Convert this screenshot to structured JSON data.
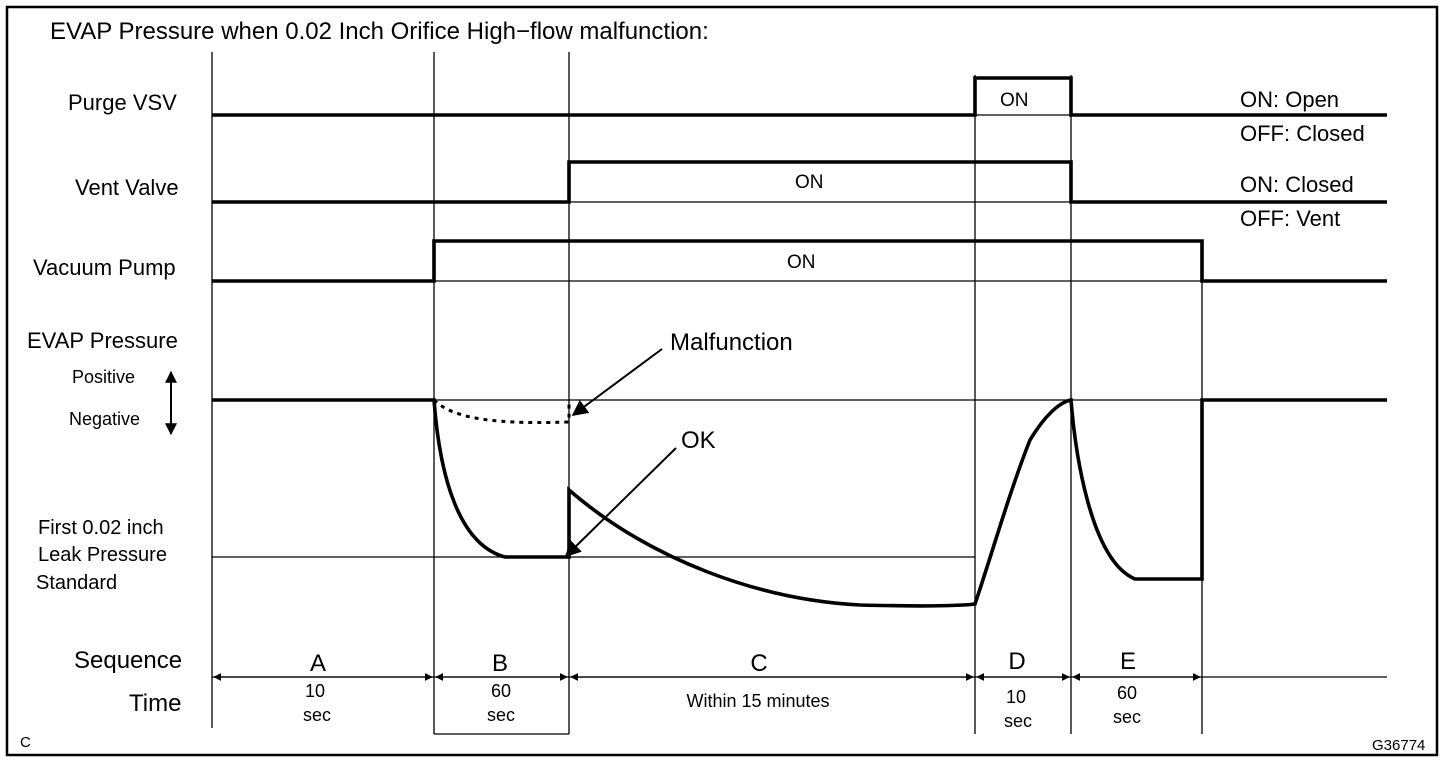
{
  "title": "EVAP Pressure when 0.02 Inch Orifice High−flow malfunction:",
  "signals": {
    "purge_vsv": {
      "label": "Purge VSV",
      "pulse_label": "ON",
      "legend_on": "ON: Open",
      "legend_off": "OFF: Closed"
    },
    "vent_valve": {
      "label": "Vent Valve",
      "pulse_label": "ON",
      "legend_on": "ON: Closed",
      "legend_off": "OFF: Vent"
    },
    "vacuum_pump": {
      "label": "Vacuum Pump",
      "pulse_label": "ON"
    }
  },
  "pressure": {
    "label": "EVAP Pressure",
    "positive": "Positive",
    "negative": "Negative",
    "malfunction": "Malfunction",
    "ok": "OK",
    "standard_line1": "First 0.02 inch",
    "standard_line2": "Leak Pressure",
    "standard_line3": "Standard"
  },
  "sequence_label": "Sequence",
  "time_label": "Time",
  "phases": [
    {
      "id": "A",
      "time1": "10",
      "time2": "sec"
    },
    {
      "id": "B",
      "time1": "60",
      "time2": "sec"
    },
    {
      "id": "C",
      "time1": "Within 15 minutes",
      "time2": ""
    },
    {
      "id": "D",
      "time1": "10",
      "time2": "sec"
    },
    {
      "id": "E",
      "time1": "60",
      "time2": "sec"
    }
  ],
  "corner_letter": "C",
  "figure_code": "G36774"
}
